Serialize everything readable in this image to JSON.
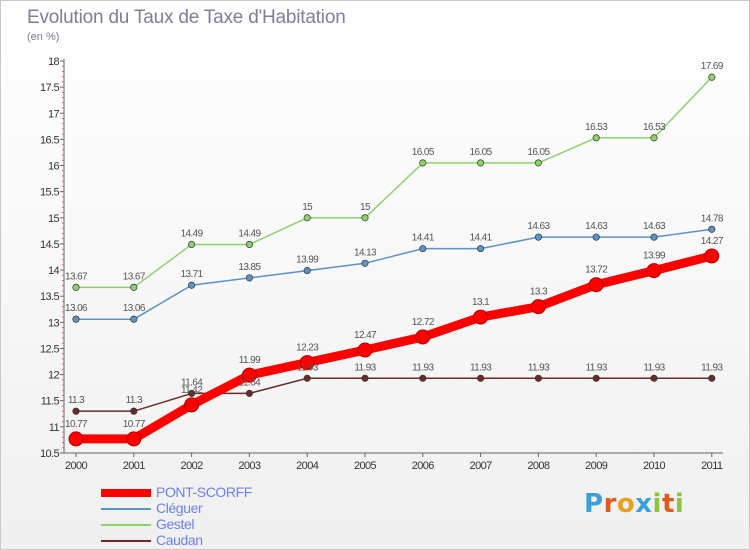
{
  "title": "Evolution du Taux de Taxe d'Habitation",
  "unit_label": "(en %)",
  "logo": {
    "text": "Proxiti",
    "letter_colors": [
      "#3aa0d8",
      "#e05a1e",
      "#e8a020",
      "#3aa0d8",
      "#8cc43c",
      "#e05a1e",
      "#8cc43c"
    ]
  },
  "chart_data": {
    "type": "line",
    "title": "Evolution du Taux de Taxe d'Habitation",
    "ylabel": "(en %)",
    "xlabel": "",
    "x": [
      "2000",
      "2001",
      "2002",
      "2003",
      "2004",
      "2005",
      "2006",
      "2007",
      "2008",
      "2009",
      "2010",
      "2011"
    ],
    "ylim": [
      10.5,
      18
    ],
    "yticks": [
      "10.5",
      "11",
      "11.5",
      "12",
      "12.5",
      "13",
      "13.5",
      "14",
      "14.5",
      "15",
      "15.5",
      "16",
      "16.5",
      "17",
      "17.5",
      "18"
    ],
    "grid": false,
    "legend_position": "bottom-left",
    "series": [
      {
        "name": "PONT-SCORFF",
        "color": "#ff0000",
        "emphasis": true,
        "values": [
          10.77,
          10.77,
          11.42,
          11.99,
          12.23,
          12.47,
          12.72,
          13.1,
          13.3,
          13.72,
          13.99,
          14.27
        ],
        "labels": [
          "10.77",
          "10.77",
          "11.42",
          "11.99",
          "12.23",
          "12.47",
          "12.72",
          "13.1",
          "13.3",
          "13.72",
          "13.99",
          "14.27"
        ]
      },
      {
        "name": "Cléguer",
        "color": "#5b93c7",
        "emphasis": false,
        "values": [
          13.06,
          13.06,
          13.71,
          13.85,
          13.99,
          14.13,
          14.41,
          14.41,
          14.63,
          14.63,
          14.63,
          14.78
        ],
        "labels": [
          "13.06",
          "13.06",
          "13.71",
          "13.85",
          "13.99",
          "14.13",
          "14.41",
          "14.41",
          "14.63",
          "14.63",
          "14.63",
          "14.78"
        ]
      },
      {
        "name": "Gestel",
        "color": "#8cd26b",
        "emphasis": false,
        "values": [
          13.67,
          13.67,
          14.49,
          14.49,
          15,
          15,
          16.05,
          16.05,
          16.05,
          16.53,
          16.53,
          17.69
        ],
        "labels": [
          "13.67",
          "13.67",
          "14.49",
          "14.49",
          "15",
          "15",
          "16.05",
          "16.05",
          "16.05",
          "16.53",
          "16.53",
          "17.69"
        ]
      },
      {
        "name": "Caudan",
        "color": "#6b2a2a",
        "emphasis": false,
        "values": [
          11.3,
          11.3,
          11.64,
          11.64,
          11.93,
          11.93,
          11.93,
          11.93,
          11.93,
          11.93,
          11.93,
          11.93
        ],
        "labels": [
          "11.3",
          "11.3",
          "11.64",
          "11.64",
          "11.93",
          "11.93",
          "11.93",
          "11.93",
          "11.93",
          "11.93",
          "11.93",
          "11.93"
        ]
      }
    ]
  }
}
